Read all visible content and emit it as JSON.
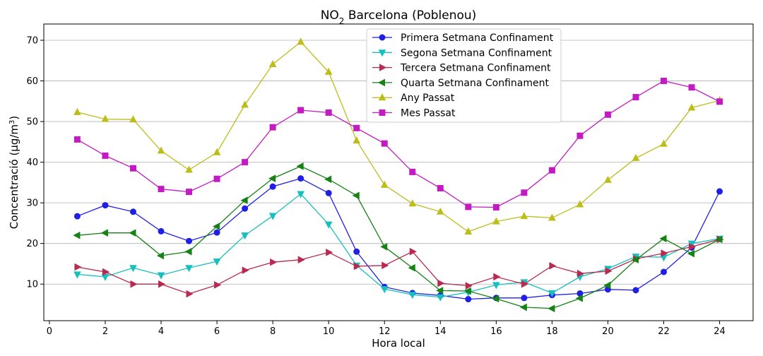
{
  "chart_data": {
    "type": "line",
    "title_main": "NO",
    "title_sub": "2",
    "title_rest": " Barcelona (Poblenou)",
    "xlabel": "Hora local",
    "ylabel_main": "Concentració (µg/m",
    "ylabel_sup": "3",
    "ylabel_end": ")",
    "xlim": [
      -0.2,
      25.2
    ],
    "ylim": [
      1,
      74
    ],
    "xticks": [
      0,
      2,
      4,
      6,
      8,
      10,
      12,
      14,
      16,
      18,
      20,
      22,
      24
    ],
    "yticks": [
      10,
      20,
      30,
      40,
      50,
      60,
      70
    ],
    "grid": "horizontal",
    "legend_position": "top-center",
    "x": [
      1,
      2,
      3,
      4,
      5,
      6,
      7,
      8,
      9,
      10,
      11,
      12,
      13,
      14,
      15,
      16,
      17,
      18,
      19,
      20,
      21,
      22,
      23,
      24
    ],
    "series": [
      {
        "name": "Primera Setmana Confinament",
        "color": "#1f1fe6",
        "marker": "circle",
        "values": [
          26.7,
          29.4,
          27.8,
          23.0,
          20.6,
          22.7,
          28.6,
          34.0,
          36.0,
          32.4,
          18.0,
          9.3,
          7.8,
          7.2,
          6.3,
          6.6,
          6.6,
          7.3,
          7.7,
          8.7,
          8.5,
          13.0,
          19.0,
          32.8
        ]
      },
      {
        "name": "Segona Setmana Confinament",
        "color": "#17bfbf",
        "marker": "triangle-down",
        "values": [
          12.4,
          11.8,
          14.0,
          12.2,
          14.0,
          15.6,
          22.0,
          26.8,
          32.2,
          24.7,
          14.6,
          8.8,
          7.4,
          6.8,
          8.0,
          9.8,
          10.5,
          7.8,
          11.8,
          13.8,
          16.8,
          16.6,
          20.0,
          21.2
        ]
      },
      {
        "name": "Tercera Setmana Confinament",
        "color": "#b82a50",
        "marker": "triangle-right",
        "values": [
          14.2,
          13.0,
          10.0,
          10.0,
          7.6,
          9.8,
          13.4,
          15.4,
          16.0,
          17.8,
          14.4,
          14.6,
          18.0,
          10.2,
          9.6,
          11.8,
          10.0,
          14.5,
          12.6,
          13.2,
          16.2,
          17.6,
          19.2,
          21.0
        ]
      },
      {
        "name": "Quarta Setmana Confinament",
        "color": "#148214",
        "marker": "triangle-left",
        "values": [
          22.0,
          22.6,
          22.6,
          17.0,
          18.0,
          24.2,
          30.6,
          36.0,
          39.0,
          35.8,
          31.8,
          19.2,
          14.0,
          8.4,
          8.3,
          6.4,
          4.3,
          4.0,
          6.5,
          9.7,
          16.0,
          21.2,
          17.5,
          21.0
        ]
      },
      {
        "name": "Any Passat",
        "color": "#bdbd1a",
        "marker": "triangle-up",
        "values": [
          52.3,
          50.6,
          50.5,
          42.8,
          38.1,
          42.4,
          54.1,
          64.1,
          69.6,
          62.2,
          45.3,
          34.4,
          29.8,
          27.8,
          22.9,
          25.4,
          26.7,
          26.3,
          29.6,
          35.6,
          41.0,
          44.5,
          53.4,
          55.2
        ]
      },
      {
        "name": "Mes Passat",
        "color": "#c41ac4",
        "marker": "square",
        "values": [
          45.6,
          41.6,
          38.5,
          33.4,
          32.7,
          35.9,
          40.0,
          48.6,
          52.8,
          52.2,
          48.4,
          44.6,
          37.6,
          33.6,
          29.0,
          28.9,
          32.5,
          38.0,
          46.5,
          51.7,
          56.0,
          60.0,
          58.4,
          54.9
        ]
      }
    ]
  }
}
